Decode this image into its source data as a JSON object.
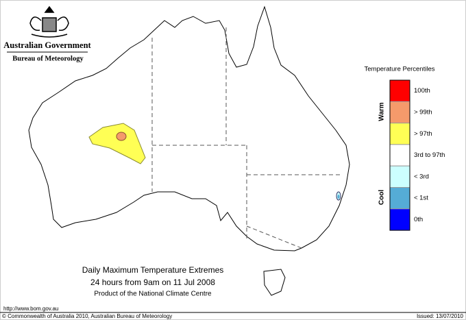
{
  "header": {
    "agency": "Australian Government",
    "bureau": "Bureau of Meteorology"
  },
  "legend": {
    "title": "Temperature Percentiles",
    "warm_label": "Warm",
    "cool_label": "Cool",
    "items": [
      {
        "label": "100th",
        "color": "#ff0000"
      },
      {
        "label": "> 99th",
        "color": "#f59a6b"
      },
      {
        "label": "> 97th",
        "color": "#ffff55"
      },
      {
        "label": "3rd to 97th",
        "color": "#ffffff"
      },
      {
        "label": "< 3rd",
        "color": "#ccffff"
      },
      {
        "label": "< 1st",
        "color": "#55acd6"
      },
      {
        "label": "0th",
        "color": "#0000ff"
      }
    ]
  },
  "caption": {
    "title": "Daily Maximum Temperature Extremes",
    "period": "24 hours from 9am on 11 Jul 2008",
    "product": "Product of the National Climate Centre"
  },
  "footer": {
    "url": "http://www.bom.gov.au",
    "copyright": "© Commonwealth of Australia 2010, Australian Bureau of Meteorology",
    "issued": "Issued: 13/07/2010"
  }
}
